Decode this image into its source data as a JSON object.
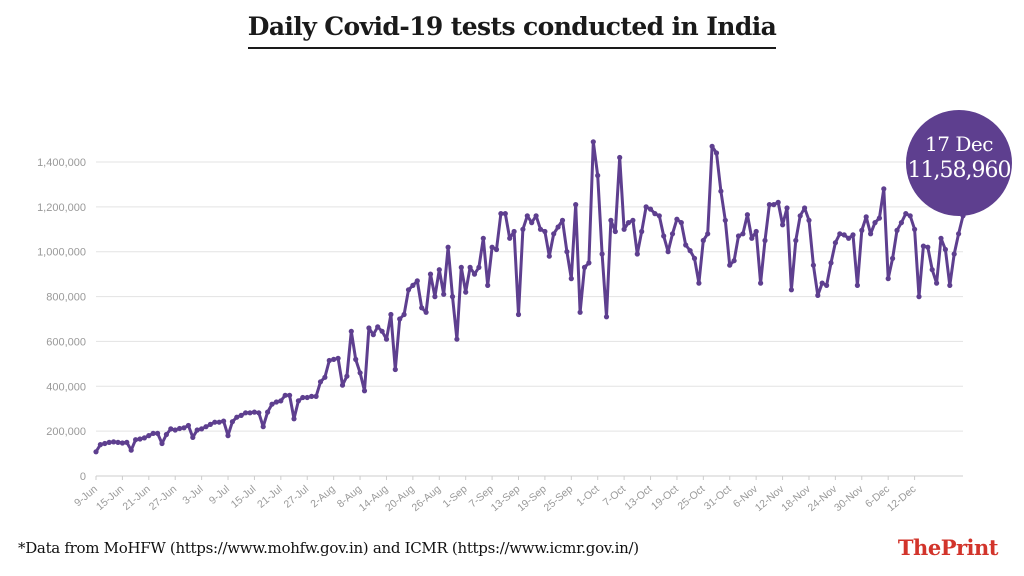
{
  "title": "Daily Covid-19 tests conducted in India",
  "footnote": "*Data from MoHFW (https://www.mohfw.gov.in) and ICMR (https://www.icmr.gov.in/)",
  "brand": {
    "the": "The",
    "print": "Print"
  },
  "callout": {
    "date": "17 Dec",
    "value": "11,58,960"
  },
  "colors": {
    "line": "#5e3f8f",
    "accent": "#d2342b",
    "grid": "#e3e3e3"
  },
  "chart_data": {
    "type": "line",
    "title": "Daily Covid-19 tests conducted in India",
    "xlabel": "",
    "ylabel": "",
    "ylim": [
      0,
      1400000
    ],
    "yticks": [
      0,
      200000,
      400000,
      600000,
      800000,
      1000000,
      1200000,
      1400000
    ],
    "ytick_labels": [
      "0",
      "200,000",
      "400,000",
      "600,000",
      "800,000",
      "1,000,000",
      "1,200,000",
      "1,400,000"
    ],
    "xtick_labels": [
      "9-Jun",
      "15-Jun",
      "21-Jun",
      "27-Jun",
      "3-Jul",
      "9-Jul",
      "15-Jul",
      "21-Jul",
      "27-Jul",
      "2-Aug",
      "8-Aug",
      "14-Aug",
      "20-Aug",
      "26-Aug",
      "1-Sep",
      "7-Sep",
      "13-Sep",
      "19-Sep",
      "25-Sep",
      "1-Oct",
      "7-Oct",
      "13-Oct",
      "19-Oct",
      "25-Oct",
      "31-Oct",
      "6-Nov",
      "12-Nov",
      "18-Nov",
      "24-Nov",
      "30-Nov",
      "6-Dec",
      "12-Dec"
    ],
    "x_start": "9-Jun",
    "x_end": "17-Dec",
    "grid": true,
    "series": [
      {
        "values": [
          108000,
          140000,
          145000,
          150000,
          152000,
          150000,
          147000,
          150000,
          115000,
          162000,
          165000,
          170000,
          180000,
          190000,
          190000,
          145000,
          185000,
          210000,
          205000,
          212000,
          215000,
          225000,
          172000,
          205000,
          210000,
          220000,
          230000,
          240000,
          240000,
          245000,
          180000,
          242000,
          262000,
          270000,
          282000,
          282000,
          285000,
          282000,
          220000,
          285000,
          320000,
          330000,
          335000,
          360000,
          360000,
          255000,
          335000,
          350000,
          350000,
          355000,
          355000,
          420000,
          440000,
          515000,
          520000,
          525000,
          405000,
          445000,
          645000,
          520000,
          460000,
          380000,
          660000,
          630000,
          665000,
          645000,
          610000,
          720000,
          475000,
          700000,
          720000,
          830000,
          850000,
          870000,
          750000,
          730000,
          900000,
          800000,
          920000,
          810000,
          1020000,
          800000,
          610000,
          930000,
          820000,
          930000,
          900000,
          930000,
          1060000,
          850000,
          1020000,
          1010000,
          1170000,
          1170000,
          1060000,
          1090000,
          720000,
          1100000,
          1160000,
          1130000,
          1160000,
          1100000,
          1090000,
          980000,
          1080000,
          1110000,
          1140000,
          1000000,
          880000,
          1210000,
          730000,
          930000,
          950000,
          1490000,
          1340000,
          990000,
          710000,
          1140000,
          1090000,
          1420000,
          1100000,
          1130000,
          1140000,
          990000,
          1090000,
          1200000,
          1190000,
          1170000,
          1160000,
          1070000,
          1000000,
          1080000,
          1145000,
          1130000,
          1030000,
          1005000,
          970000,
          860000,
          1050000,
          1080000,
          1470000,
          1440000,
          1270000,
          1140000,
          940000,
          960000,
          1070000,
          1080000,
          1165000,
          1060000,
          1090000,
          860000,
          1050000,
          1210000,
          1210000,
          1220000,
          1120000,
          1195000,
          830000,
          1050000,
          1160000,
          1195000,
          1140000,
          940000,
          805000,
          860000,
          850000,
          950000,
          1040000,
          1080000,
          1075000,
          1060000,
          1075000,
          850000,
          1095000,
          1155000,
          1080000,
          1130000,
          1150000,
          1280000,
          880000,
          970000,
          1095000,
          1130000,
          1170000,
          1160000,
          1100000,
          800000,
          1025000,
          1020000,
          920000,
          860000,
          1060000,
          1010000,
          850000,
          990000,
          1080000,
          1160000
        ]
      }
    ]
  }
}
